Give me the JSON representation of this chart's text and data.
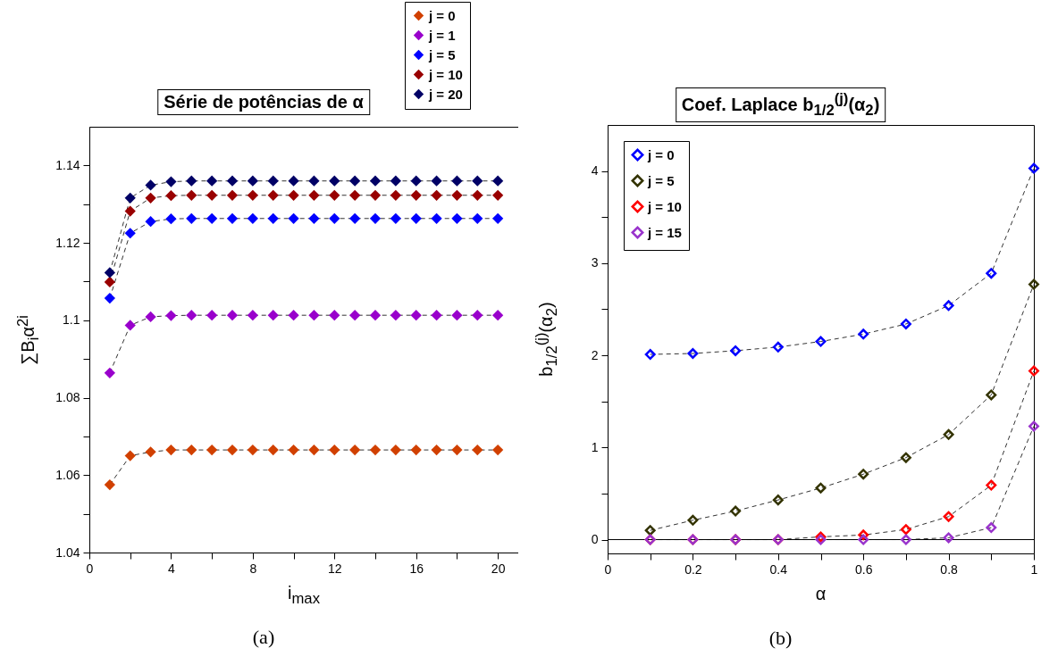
{
  "chart_data": [
    {
      "type": "line",
      "title": "Série de potências de α",
      "xlabel": "i$_{max}$",
      "ylabel": "∑B$_{i}$α$^{2i}$",
      "annotations": [
        "(a)"
      ],
      "marker": "diamond",
      "line_style": "dashed",
      "legend": "top right",
      "grid": false,
      "x": [
        1,
        2,
        3,
        4,
        5,
        6,
        7,
        8,
        9,
        10,
        11,
        12,
        13,
        14,
        15,
        16,
        17,
        18,
        19,
        20
      ],
      "xlim": [
        0,
        21
      ],
      "xticks": [
        0,
        {
          "value": 2,
          "label": null
        },
        4,
        {
          "value": 6,
          "label": null
        },
        8,
        {
          "value": 10,
          "label": null
        },
        12,
        {
          "value": 14,
          "label": null
        },
        16,
        {
          "value": 18,
          "label": null
        },
        20
      ],
      "ylim": [
        1.04,
        1.15
      ],
      "yticks": [
        1.04,
        {
          "value": 1.05,
          "label": null
        },
        1.06,
        {
          "value": 1.07,
          "label": null
        },
        1.08,
        {
          "value": 1.09,
          "label": null
        },
        {
          "value": 1.1,
          "label": "1.1"
        },
        {
          "value": 1.11,
          "label": null
        },
        1.12,
        {
          "value": 1.13,
          "label": null
        },
        1.14
      ],
      "series": [
        {
          "name": "j = 0",
          "color": "#d14000",
          "values": [
            1.0575,
            1.065,
            1.066,
            1.0665,
            1.0665,
            1.0665,
            1.0665,
            1.0665,
            1.0665,
            1.0665,
            1.0665,
            1.0665,
            1.0665,
            1.0665,
            1.0665,
            1.0665,
            1.0665,
            1.0665,
            1.0665,
            1.0665
          ]
        },
        {
          "name": "j = 1",
          "color": "#9900cc",
          "values": [
            1.0864,
            1.0987,
            1.1009,
            1.1012,
            1.1013,
            1.1013,
            1.1013,
            1.1013,
            1.1013,
            1.1013,
            1.1013,
            1.1013,
            1.1013,
            1.1013,
            1.1013,
            1.1013,
            1.1013,
            1.1013,
            1.1013,
            1.1013
          ]
        },
        {
          "name": "j = 5",
          "color": "#0000ff",
          "values": [
            1.1057,
            1.1225,
            1.1255,
            1.1262,
            1.1263,
            1.1263,
            1.1263,
            1.1263,
            1.1263,
            1.1263,
            1.1263,
            1.1263,
            1.1263,
            1.1263,
            1.1263,
            1.1263,
            1.1263,
            1.1263,
            1.1263,
            1.1263
          ]
        },
        {
          "name": "j = 10",
          "color": "#990000",
          "values": [
            1.1099,
            1.1282,
            1.1316,
            1.1322,
            1.1323,
            1.1323,
            1.1323,
            1.1323,
            1.1323,
            1.1323,
            1.1323,
            1.1323,
            1.1323,
            1.1323,
            1.1323,
            1.1323,
            1.1323,
            1.1323,
            1.1323,
            1.1323
          ]
        },
        {
          "name": "j = 20",
          "color": "#000066",
          "values": [
            1.1123,
            1.1316,
            1.1349,
            1.1358,
            1.136,
            1.136,
            1.136,
            1.136,
            1.136,
            1.136,
            1.136,
            1.136,
            1.136,
            1.136,
            1.136,
            1.136,
            1.136,
            1.136,
            1.136,
            1.136
          ]
        }
      ]
    },
    {
      "type": "line",
      "title": "Coef. Laplace b$_{1/2}$$^{(j)}$(α$_{2}$)",
      "xlabel": "α",
      "ylabel": "b$_{1/2}$$^{(j)}$(α$_{2}$)",
      "annotations": [
        "(b)"
      ],
      "marker": "diamond",
      "line_style": "dashed",
      "legend": "top left",
      "grid": false,
      "x": [
        0.1,
        0.2,
        0.3,
        0.4,
        0.5,
        0.6,
        0.7,
        0.8,
        0.9,
        1.0
      ],
      "xlim": [
        0,
        1
      ],
      "xticks": [
        0,
        {
          "value": 0.1,
          "label": null
        },
        0.2,
        {
          "value": 0.3,
          "label": null
        },
        0.4,
        {
          "value": 0.5,
          "label": null
        },
        0.6,
        {
          "value": 0.7,
          "label": null
        },
        0.8,
        {
          "value": 0.9,
          "label": null
        },
        {
          "value": 1,
          "label": "1"
        }
      ],
      "ylim": [
        -0.15,
        4.5
      ],
      "yticks": [
        0,
        {
          "value": 0.5,
          "label": null
        },
        1,
        {
          "value": 1.5,
          "label": null
        },
        2,
        {
          "value": 2.5,
          "label": null
        },
        3,
        {
          "value": 3.5,
          "label": null
        },
        4
      ],
      "ref_lines": [
        {
          "axis": "y",
          "value": 0,
          "color": "#000000"
        }
      ],
      "series": [
        {
          "name": "j = 0",
          "color": "#0000ff",
          "values": [
            2.01,
            2.02,
            2.05,
            2.09,
            2.15,
            2.23,
            2.34,
            2.54,
            2.89,
            4.03
          ]
        },
        {
          "name": "j = 5",
          "color": "#333300",
          "values": [
            0.1,
            0.21,
            0.31,
            0.43,
            0.56,
            0.71,
            0.89,
            1.14,
            1.57,
            2.77
          ]
        },
        {
          "name": "j = 10",
          "color": "#ff0000",
          "values": [
            0,
            0,
            0,
            0,
            0.03,
            0.05,
            0.11,
            0.25,
            0.59,
            1.83
          ]
        },
        {
          "name": "j = 15",
          "color": "#9933cc",
          "values": [
            0,
            0,
            0,
            0,
            0,
            0,
            0,
            0.02,
            0.13,
            1.23
          ]
        }
      ]
    }
  ]
}
